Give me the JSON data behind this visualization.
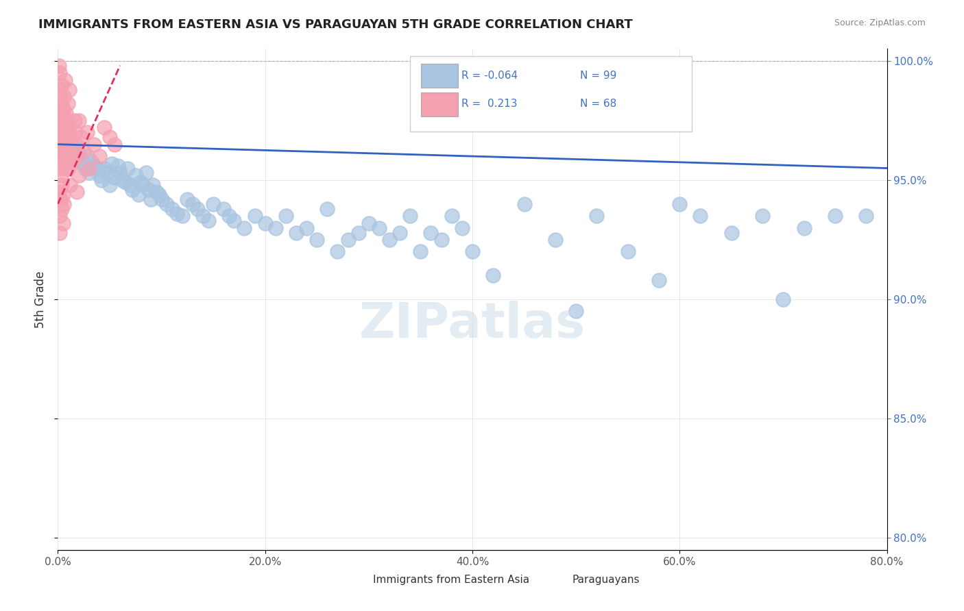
{
  "title": "IMMIGRANTS FROM EASTERN ASIA VS PARAGUAYAN 5TH GRADE CORRELATION CHART",
  "source": "Source: ZipAtlas.com",
  "xlabel": "",
  "ylabel": "5th Grade",
  "x_tick_labels": [
    "0.0%",
    "20.0%",
    "40.0%",
    "60.0%",
    "80.0%"
  ],
  "y_tick_labels": [
    "80.0%",
    "85.0%",
    "90.0%",
    "95.0%",
    "100.0%"
  ],
  "xlim": [
    0.0,
    0.8
  ],
  "ylim": [
    0.795,
    1.005
  ],
  "legend1_label": "Immigrants from Eastern Asia",
  "legend2_label": "Paraguayans",
  "r1": "-0.064",
  "n1": "99",
  "r2": "0.213",
  "n2": "68",
  "blue_color": "#a8c4e0",
  "pink_color": "#f4a0b0",
  "line_blue": "#3060c0",
  "line_pink": "#e03060",
  "watermark": "ZIPatlas",
  "blue_scatter": [
    [
      0.002,
      0.98
    ],
    [
      0.003,
      0.975
    ],
    [
      0.004,
      0.972
    ],
    [
      0.005,
      0.968
    ],
    [
      0.006,
      0.971
    ],
    [
      0.007,
      0.965
    ],
    [
      0.008,
      0.97
    ],
    [
      0.009,
      0.968
    ],
    [
      0.01,
      0.966
    ],
    [
      0.012,
      0.965
    ],
    [
      0.014,
      0.963
    ],
    [
      0.015,
      0.96
    ],
    [
      0.016,
      0.958
    ],
    [
      0.018,
      0.963
    ],
    [
      0.02,
      0.961
    ],
    [
      0.022,
      0.959
    ],
    [
      0.025,
      0.957
    ],
    [
      0.027,
      0.955
    ],
    [
      0.028,
      0.96
    ],
    [
      0.03,
      0.953
    ],
    [
      0.032,
      0.958
    ],
    [
      0.035,
      0.956
    ],
    [
      0.038,
      0.955
    ],
    [
      0.04,
      0.952
    ],
    [
      0.042,
      0.95
    ],
    [
      0.045,
      0.955
    ],
    [
      0.048,
      0.953
    ],
    [
      0.05,
      0.948
    ],
    [
      0.052,
      0.957
    ],
    [
      0.055,
      0.951
    ],
    [
      0.058,
      0.956
    ],
    [
      0.06,
      0.953
    ],
    [
      0.062,
      0.95
    ],
    [
      0.065,
      0.949
    ],
    [
      0.067,
      0.955
    ],
    [
      0.07,
      0.948
    ],
    [
      0.072,
      0.946
    ],
    [
      0.075,
      0.952
    ],
    [
      0.078,
      0.944
    ],
    [
      0.08,
      0.949
    ],
    [
      0.082,
      0.948
    ],
    [
      0.085,
      0.953
    ],
    [
      0.088,
      0.946
    ],
    [
      0.09,
      0.942
    ],
    [
      0.092,
      0.948
    ],
    [
      0.095,
      0.945
    ],
    [
      0.098,
      0.944
    ],
    [
      0.1,
      0.942
    ],
    [
      0.105,
      0.94
    ],
    [
      0.11,
      0.938
    ],
    [
      0.115,
      0.936
    ],
    [
      0.12,
      0.935
    ],
    [
      0.125,
      0.942
    ],
    [
      0.13,
      0.94
    ],
    [
      0.135,
      0.938
    ],
    [
      0.14,
      0.935
    ],
    [
      0.145,
      0.933
    ],
    [
      0.15,
      0.94
    ],
    [
      0.16,
      0.938
    ],
    [
      0.165,
      0.935
    ],
    [
      0.17,
      0.933
    ],
    [
      0.18,
      0.93
    ],
    [
      0.19,
      0.935
    ],
    [
      0.2,
      0.932
    ],
    [
      0.21,
      0.93
    ],
    [
      0.22,
      0.935
    ],
    [
      0.23,
      0.928
    ],
    [
      0.24,
      0.93
    ],
    [
      0.25,
      0.925
    ],
    [
      0.26,
      0.938
    ],
    [
      0.27,
      0.92
    ],
    [
      0.28,
      0.925
    ],
    [
      0.29,
      0.928
    ],
    [
      0.3,
      0.932
    ],
    [
      0.31,
      0.93
    ],
    [
      0.32,
      0.925
    ],
    [
      0.33,
      0.928
    ],
    [
      0.34,
      0.935
    ],
    [
      0.35,
      0.92
    ],
    [
      0.36,
      0.928
    ],
    [
      0.37,
      0.925
    ],
    [
      0.38,
      0.935
    ],
    [
      0.39,
      0.93
    ],
    [
      0.4,
      0.92
    ],
    [
      0.42,
      0.91
    ],
    [
      0.45,
      0.94
    ],
    [
      0.48,
      0.925
    ],
    [
      0.5,
      0.895
    ],
    [
      0.52,
      0.935
    ],
    [
      0.55,
      0.92
    ],
    [
      0.58,
      0.908
    ],
    [
      0.6,
      0.94
    ],
    [
      0.62,
      0.935
    ],
    [
      0.65,
      0.928
    ],
    [
      0.68,
      0.935
    ],
    [
      0.7,
      0.9
    ],
    [
      0.72,
      0.93
    ],
    [
      0.75,
      0.935
    ],
    [
      0.78,
      0.935
    ]
  ],
  "pink_scatter": [
    [
      0.001,
      0.998
    ],
    [
      0.002,
      0.995
    ],
    [
      0.002,
      0.985
    ],
    [
      0.003,
      0.98
    ],
    [
      0.003,
      0.975
    ],
    [
      0.004,
      0.99
    ],
    [
      0.004,
      0.978
    ],
    [
      0.005,
      0.972
    ],
    [
      0.005,
      0.965
    ],
    [
      0.006,
      0.97
    ],
    [
      0.006,
      0.96
    ],
    [
      0.007,
      0.975
    ],
    [
      0.007,
      0.968
    ],
    [
      0.008,
      0.962
    ],
    [
      0.008,
      0.955
    ],
    [
      0.009,
      0.965
    ],
    [
      0.009,
      0.958
    ],
    [
      0.01,
      0.972
    ],
    [
      0.01,
      0.963
    ],
    [
      0.011,
      0.97
    ],
    [
      0.012,
      0.968
    ],
    [
      0.013,
      0.965
    ],
    [
      0.014,
      0.962
    ],
    [
      0.015,
      0.96
    ],
    [
      0.016,
      0.975
    ],
    [
      0.017,
      0.97
    ],
    [
      0.018,
      0.965
    ],
    [
      0.019,
      0.96
    ],
    [
      0.02,
      0.975
    ],
    [
      0.022,
      0.968
    ],
    [
      0.025,
      0.962
    ],
    [
      0.028,
      0.97
    ],
    [
      0.03,
      0.955
    ],
    [
      0.035,
      0.965
    ],
    [
      0.04,
      0.96
    ],
    [
      0.045,
      0.972
    ],
    [
      0.05,
      0.968
    ],
    [
      0.055,
      0.965
    ],
    [
      0.002,
      0.958
    ],
    [
      0.003,
      0.952
    ],
    [
      0.004,
      0.948
    ],
    [
      0.005,
      0.944
    ],
    [
      0.006,
      0.94
    ],
    [
      0.002,
      0.935
    ],
    [
      0.003,
      0.942
    ],
    [
      0.004,
      0.938
    ],
    [
      0.005,
      0.932
    ],
    [
      0.01,
      0.955
    ],
    [
      0.012,
      0.948
    ],
    [
      0.015,
      0.958
    ],
    [
      0.018,
      0.945
    ],
    [
      0.02,
      0.952
    ],
    [
      0.001,
      0.945
    ],
    [
      0.002,
      0.928
    ],
    [
      0.003,
      0.955
    ],
    [
      0.004,
      0.96
    ],
    [
      0.005,
      0.978
    ],
    [
      0.001,
      0.972
    ],
    [
      0.002,
      0.988
    ],
    [
      0.003,
      0.965
    ],
    [
      0.004,
      0.97
    ],
    [
      0.005,
      0.98
    ],
    [
      0.006,
      0.985
    ],
    [
      0.007,
      0.992
    ],
    [
      0.008,
      0.978
    ],
    [
      0.009,
      0.975
    ],
    [
      0.01,
      0.982
    ],
    [
      0.011,
      0.988
    ]
  ]
}
